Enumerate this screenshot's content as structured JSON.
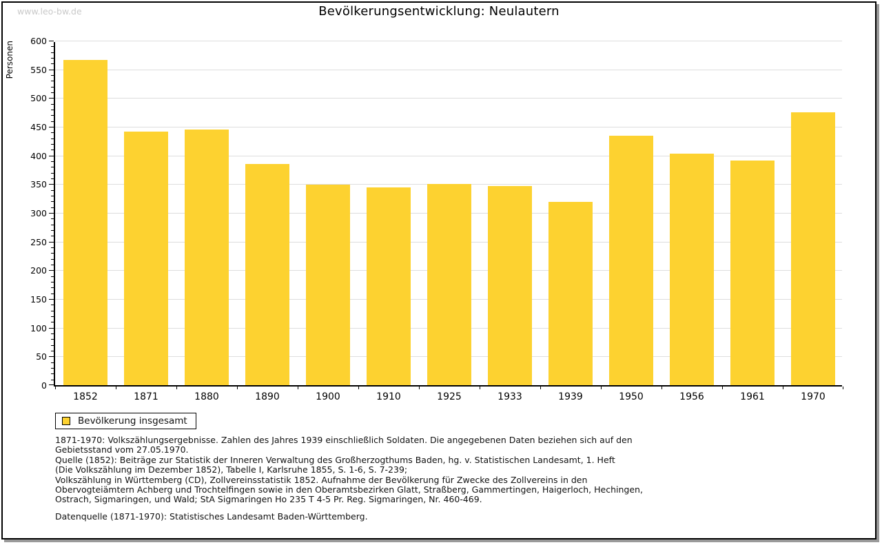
{
  "page": {
    "watermark": "www.leo-bw.de",
    "title": "Bevölkerungsentwicklung: Neulautern"
  },
  "chart_data": {
    "type": "bar",
    "title": "Bevölkerungsentwicklung: Neulautern",
    "xlabel": "",
    "ylabel": "Personen",
    "categories": [
      "1852",
      "1871",
      "1880",
      "1890",
      "1900",
      "1910",
      "1925",
      "1933",
      "1939",
      "1950",
      "1956",
      "1961",
      "1970"
    ],
    "values": [
      567,
      442,
      445,
      385,
      349,
      344,
      350,
      347,
      319,
      434,
      403,
      391,
      475
    ],
    "ylim": [
      0,
      600
    ],
    "yticks": [
      0,
      50,
      100,
      150,
      200,
      250,
      300,
      350,
      400,
      450,
      500,
      550,
      600
    ],
    "ytick_step": 50,
    "minor_tick_step": 10,
    "grid": true,
    "bar_color": "#FDD230",
    "grid_color": "#dddddd",
    "legend": {
      "label": "Bevölkerung insgesamt",
      "position": "bottom-left"
    }
  },
  "footer": {
    "lines": [
      "1871-1970: Volkszählungsergebnisse. Zahlen des Jahres 1939 einschließlich Soldaten. Die angegebenen Daten beziehen sich auf den",
      "Gebietsstand vom 27.05.1970.",
      "Quelle (1852): Beiträge zur Statistik der Inneren Verwaltung des Großherzogthums Baden, hg. v. Statistischen Landesamt, 1. Heft",
      "(Die Volkszählung im Dezember 1852), Tabelle I, Karlsruhe 1855, S. 1-6, S. 7-239;",
      "Volkszählung in Württemberg (CD), Zollvereinsstatistik 1852. Aufnahme der Bevölkerung für Zwecke des Zollvereins in den",
      "Obervogteiämtern Achberg und Trochtelfingen sowie in den Oberamtsbezirken Glatt, Straßberg, Gammertingen, Haigerloch, Hechingen,",
      "Ostrach, Sigmaringen, und Wald; StA Sigmaringen Ho 235 T 4-5 Pr. Reg. Sigmaringen, Nr. 460-469."
    ],
    "datasource": "Datenquelle (1871-1970): Statistisches Landesamt Baden-Württemberg."
  }
}
